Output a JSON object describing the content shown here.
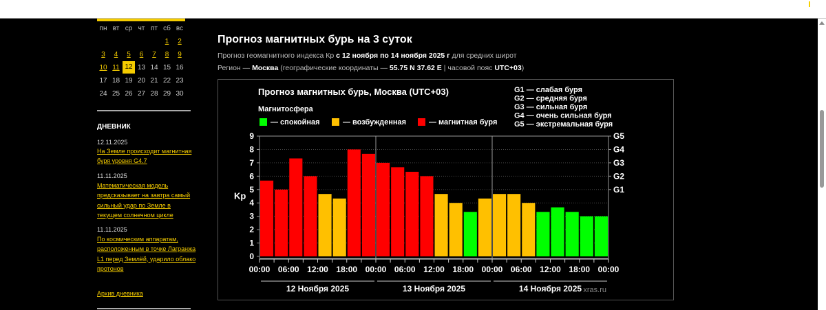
{
  "calendar": {
    "weekdays": [
      "пн",
      "вт",
      "ср",
      "чт",
      "пт",
      "сб",
      "вс"
    ],
    "weeks": [
      [
        "",
        "",
        "",
        "",
        "",
        "1",
        "2"
      ],
      [
        "3",
        "4",
        "5",
        "6",
        "7",
        "8",
        "9"
      ],
      [
        "10",
        "11",
        "12",
        "13",
        "14",
        "15",
        "16"
      ],
      [
        "17",
        "18",
        "19",
        "20",
        "21",
        "22",
        "23"
      ],
      [
        "24",
        "25",
        "26",
        "27",
        "28",
        "29",
        "30"
      ]
    ],
    "linked": [
      "1",
      "2",
      "3",
      "4",
      "5",
      "6",
      "7",
      "8",
      "9",
      "10",
      "11"
    ],
    "today": "12"
  },
  "diary": {
    "title": "ДНЕВНИК",
    "entries": [
      {
        "date": "12.11.2025",
        "text": "На Земле происходит магнитная буря уровня G4.7"
      },
      {
        "date": "11.11.2025",
        "text": "Математическая модель предсказывает на завтра самый сильный удар по Земле в текущем солнечном цикле"
      },
      {
        "date": "11.11.2025",
        "text": "По космическим аппаратам, расположенным в точке Лагранжа L1 перед Землёй, ударило облако протонов"
      }
    ],
    "archive": "Архив дневника"
  },
  "page": {
    "title": "Прогноз магнитных бурь на 3 суток",
    "line1": {
      "a": "Прогноз геомагнитного индекса Кр ",
      "b": "с 12 ноября по 14 ноября 2025 г",
      "c": " для средних широт"
    },
    "line2": {
      "a": "Регион — ",
      "b": "Москва",
      "c": " (географические координаты — ",
      "d": "55.75 N 37.62 E",
      "e": " | часовой пояс ",
      "f": "UTC+03",
      "g": ")"
    }
  },
  "chart_data": {
    "type": "bar",
    "title": "Прогноз магнитных бурь, Москва (UTC+03)",
    "legend_title": "Магнитосфера",
    "legend": [
      {
        "label": "— спокойная",
        "color": "#00ff00"
      },
      {
        "label": "— возбужденная",
        "color": "#ffc000"
      },
      {
        "label": "— магнитная буря",
        "color": "#ff0000"
      }
    ],
    "g_legend": [
      "G1 — слабая буря",
      "G2 — средняя буря",
      "G3 — сильная буря",
      "G4 — очень сильная буря",
      "G5 — экстремальная буря"
    ],
    "ylabel": "Kp",
    "ylim": [
      0,
      9
    ],
    "yticks": [
      "0",
      "1",
      "2",
      "3",
      "4",
      "5",
      "6",
      "7",
      "8",
      "9"
    ],
    "right_ticks": [
      {
        "label": "G1",
        "kp": 5
      },
      {
        "label": "G2",
        "kp": 6
      },
      {
        "label": "G3",
        "kp": 7
      },
      {
        "label": "G4",
        "kp": 8
      },
      {
        "label": "G5",
        "kp": 9
      }
    ],
    "xticks": [
      "00:00",
      "06:00",
      "12:00",
      "18:00",
      "00:00",
      "06:00",
      "12:00",
      "18:00",
      "00:00",
      "06:00",
      "12:00",
      "18:00",
      "00:00"
    ],
    "days": [
      "12 Ноября 2025",
      "13 Ноября 2025",
      "14 Ноября 2025"
    ],
    "values": [
      5.67,
      5,
      7.33,
      6,
      4.67,
      4.33,
      8,
      7.67,
      7,
      6.67,
      6.33,
      6,
      4.67,
      4,
      3.33,
      4.33,
      4.67,
      4.67,
      4,
      3.33,
      3.67,
      3.33,
      3,
      3
    ],
    "watermark": "xras.ru"
  }
}
